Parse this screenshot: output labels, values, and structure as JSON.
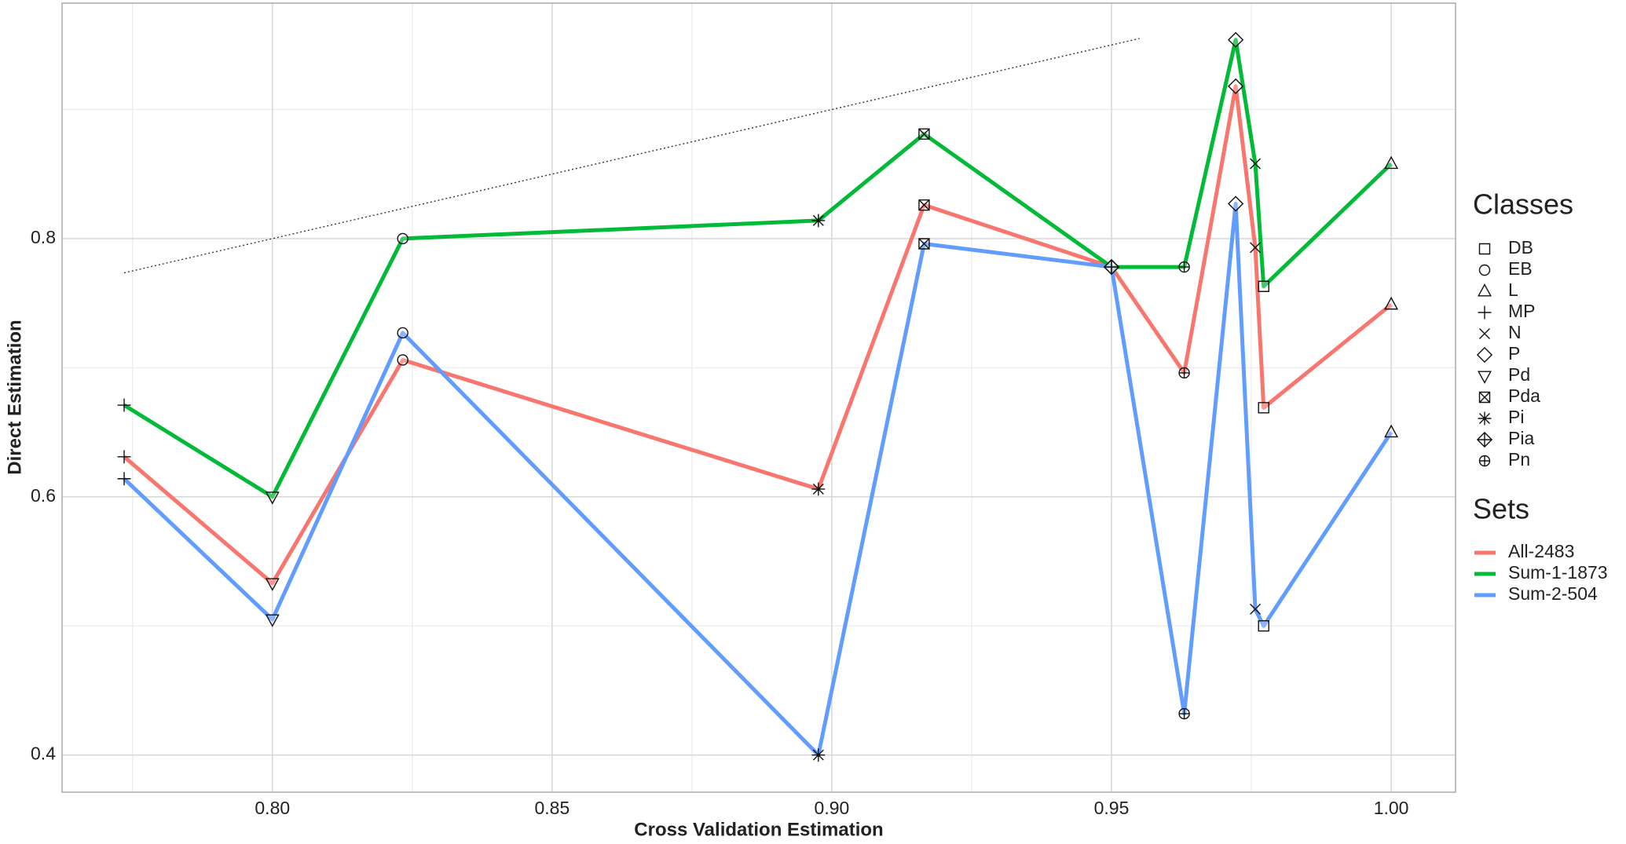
{
  "chart_data": {
    "type": "line",
    "x_label": "Cross Validation Estimation",
    "y_label": "Direct Estimation",
    "x": [
      0.7735,
      0.8,
      0.8233,
      0.8976,
      0.9165,
      0.95,
      0.963,
      0.9722,
      0.9757,
      0.9772,
      1.0
    ],
    "point_classes": [
      "MP",
      "Pd",
      "EB",
      "Pi",
      "Pda",
      "Pia",
      "Pn",
      "P",
      "N",
      "DB",
      "L"
    ],
    "series": [
      {
        "name": "All-2483",
        "color": "#F8766D",
        "values": [
          0.631,
          0.533,
          0.706,
          0.606,
          0.826,
          0.778,
          0.696,
          0.918,
          0.793,
          0.669,
          0.749
        ]
      },
      {
        "name": "Sum-1-1873",
        "color": "#00BA38",
        "values": [
          0.671,
          0.6,
          0.8,
          0.814,
          0.881,
          0.778,
          0.778,
          0.954,
          0.858,
          0.763,
          0.858
        ]
      },
      {
        "name": "Sum-2-504",
        "color": "#619CFF",
        "values": [
          0.614,
          0.505,
          0.727,
          0.4,
          0.796,
          0.778,
          0.432,
          0.827,
          0.513,
          0.5,
          0.65
        ]
      }
    ],
    "classes_title": "Classes",
    "classes": [
      {
        "name": "DB",
        "shape": "square"
      },
      {
        "name": "EB",
        "shape": "circle"
      },
      {
        "name": "L",
        "shape": "triangle"
      },
      {
        "name": "MP",
        "shape": "plus"
      },
      {
        "name": "N",
        "shape": "cross"
      },
      {
        "name": "P",
        "shape": "diamond"
      },
      {
        "name": "Pd",
        "shape": "triangle-down"
      },
      {
        "name": "Pda",
        "shape": "square-cross"
      },
      {
        "name": "Pi",
        "shape": "asterisk"
      },
      {
        "name": "Pia",
        "shape": "diamond-plus"
      },
      {
        "name": "Pn",
        "shape": "circle-plus"
      }
    ],
    "sets_title": "Sets",
    "reference_line": {
      "x": [
        0.7735,
        0.955
      ],
      "y": [
        0.7735,
        0.955
      ]
    },
    "xlim": [
      0.7624,
      1.0115
    ],
    "ylim": [
      0.3712,
      0.9824
    ],
    "xticks": [
      {
        "value": 0.8,
        "label": "0.80"
      },
      {
        "value": 0.85,
        "label": "0.85"
      },
      {
        "value": 0.9,
        "label": "0.90"
      },
      {
        "value": 0.95,
        "label": "0.95"
      },
      {
        "value": 1.0,
        "label": "1.00"
      }
    ],
    "yticks": [
      0.4,
      0.6,
      0.8
    ],
    "grid": true,
    "minor_grid": true
  }
}
